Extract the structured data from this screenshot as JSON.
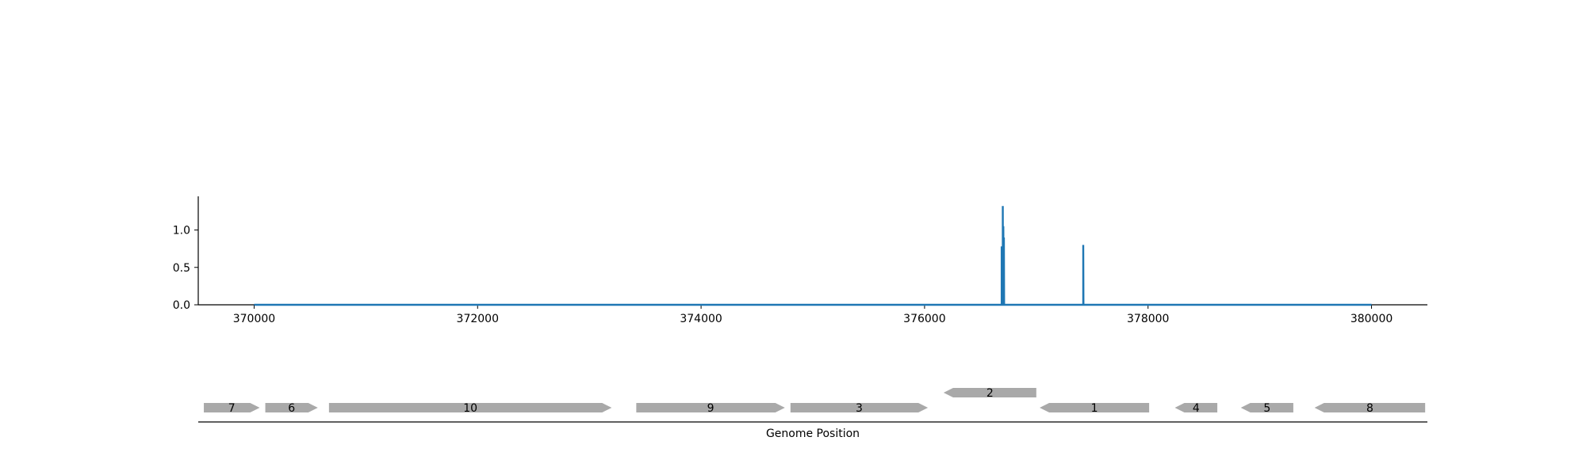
{
  "chart_data": [
    {
      "type": "line",
      "title": "",
      "xlabel": "",
      "ylabel": "",
      "xlim": [
        369500,
        380500
      ],
      "ylim": [
        0,
        1.45
      ],
      "x_ticks": [
        370000,
        372000,
        374000,
        376000,
        378000,
        380000
      ],
      "x_tick_labels": [
        "370000",
        "372000",
        "374000",
        "376000",
        "378000",
        "380000"
      ],
      "y_ticks": [
        0.0,
        0.5,
        1.0
      ],
      "y_tick_labels": [
        "0.0",
        "0.5",
        "1.0"
      ],
      "grid": false,
      "color": "#1f77b4",
      "series": [
        {
          "x": [
            370000,
            376690,
            376690,
            376692,
            376700,
            376700,
            376702,
            376705,
            376705,
            376708,
            376710,
            376710,
            376712,
            377420,
            377420,
            377422,
            380000
          ],
          "y": [
            0,
            0,
            0.78,
            0,
            0,
            1.32,
            0,
            0,
            1.05,
            0,
            0,
            0.9,
            0,
            0,
            0.8,
            0,
            0
          ]
        }
      ]
    },
    {
      "type": "gene-track",
      "xlabel": "Genome Position",
      "xlim": [
        369500,
        380500
      ],
      "gene_color": "#a9a9a9",
      "genes": [
        {
          "label": "7",
          "start": 369550,
          "end": 370050,
          "strand": "+",
          "row": 0
        },
        {
          "label": "6",
          "start": 370100,
          "end": 370570,
          "strand": "+",
          "row": 0
        },
        {
          "label": "10",
          "start": 370670,
          "end": 373200,
          "strand": "+",
          "row": 0
        },
        {
          "label": "9",
          "start": 373420,
          "end": 374750,
          "strand": "+",
          "row": 0
        },
        {
          "label": "3",
          "start": 374800,
          "end": 376030,
          "strand": "+",
          "row": 0
        },
        {
          "label": "2",
          "start": 376170,
          "end": 377000,
          "strand": "-",
          "row": 1
        },
        {
          "label": "1",
          "start": 377030,
          "end": 378010,
          "strand": "-",
          "row": 0
        },
        {
          "label": "4",
          "start": 378240,
          "end": 378620,
          "strand": "-",
          "row": 0
        },
        {
          "label": "5",
          "start": 378830,
          "end": 379300,
          "strand": "-",
          "row": 0
        },
        {
          "label": "8",
          "start": 379490,
          "end": 380480,
          "strand": "-",
          "row": 0
        }
      ]
    }
  ]
}
